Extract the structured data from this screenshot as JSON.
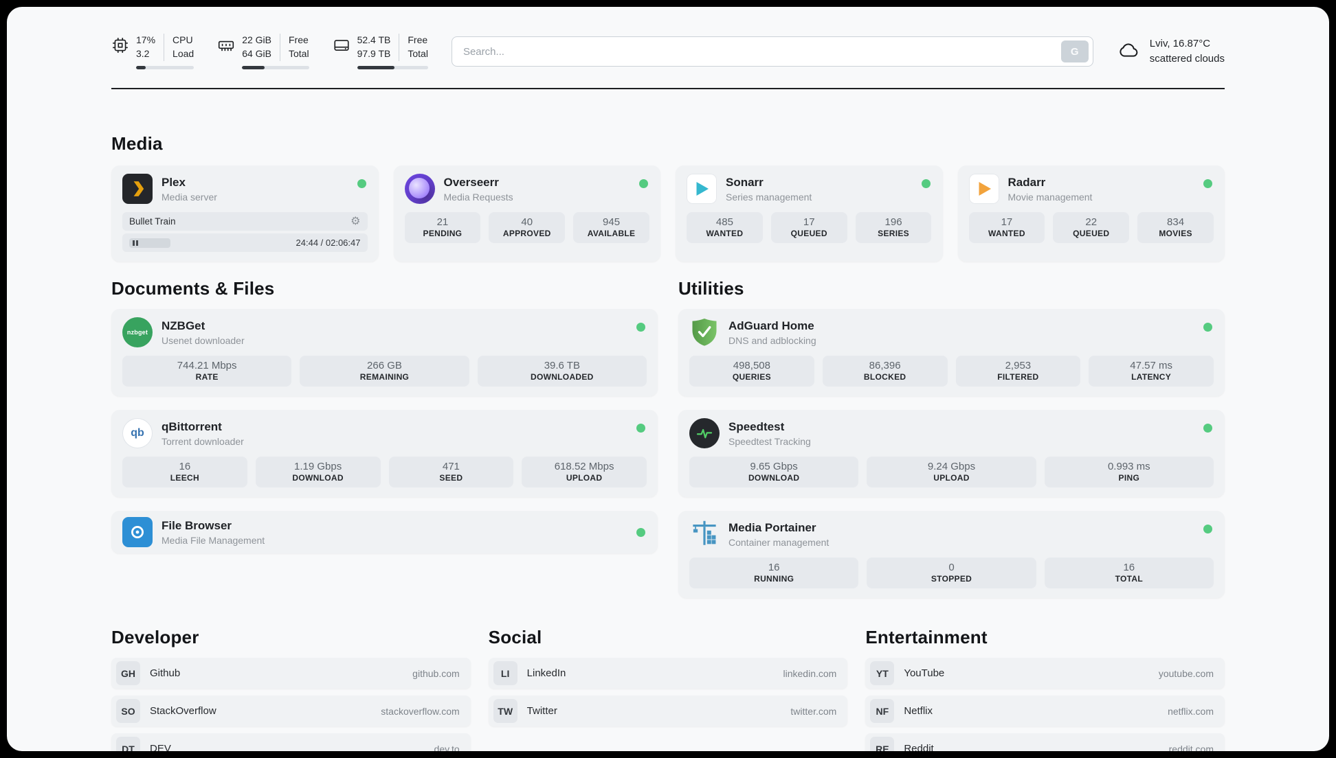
{
  "header": {
    "cpu": {
      "value_top": "17%",
      "value_bottom": "3.2",
      "label_top": "CPU",
      "label_bottom": "Load",
      "bar_percent": 17
    },
    "ram": {
      "value_top": "22 GiB",
      "value_bottom": "64 GiB",
      "label_top": "Free",
      "label_bottom": "Total",
      "bar_percent": 34
    },
    "disk": {
      "value_top": "52.4 TB",
      "value_bottom": "97.9 TB",
      "label_top": "Free",
      "label_bottom": "Total",
      "bar_percent": 53
    },
    "search": {
      "placeholder": "Search...",
      "engine_button": "G"
    },
    "weather": {
      "location_temp": "Lviv, 16.87°C",
      "condition": "scattered clouds"
    }
  },
  "media": {
    "title": "Media",
    "plex": {
      "name": "Plex",
      "subtitle": "Media server",
      "now_playing": "Bullet Train",
      "time": "24:44 / 02:06:47"
    },
    "overseerr": {
      "name": "Overseerr",
      "subtitle": "Media Requests",
      "stats": [
        {
          "value": "21",
          "label": "PENDING"
        },
        {
          "value": "40",
          "label": "APPROVED"
        },
        {
          "value": "945",
          "label": "AVAILABLE"
        }
      ]
    },
    "sonarr": {
      "name": "Sonarr",
      "subtitle": "Series management",
      "stats": [
        {
          "value": "485",
          "label": "WANTED"
        },
        {
          "value": "17",
          "label": "QUEUED"
        },
        {
          "value": "196",
          "label": "SERIES"
        }
      ]
    },
    "radarr": {
      "name": "Radarr",
      "subtitle": "Movie management",
      "stats": [
        {
          "value": "17",
          "label": "WANTED"
        },
        {
          "value": "22",
          "label": "QUEUED"
        },
        {
          "value": "834",
          "label": "MOVIES"
        }
      ]
    }
  },
  "documents": {
    "title": "Documents & Files",
    "nzbget": {
      "name": "NZBGet",
      "subtitle": "Usenet downloader",
      "icon_text": "nzbget",
      "stats": [
        {
          "value": "744.21 Mbps",
          "label": "RATE"
        },
        {
          "value": "266 GB",
          "label": "REMAINING"
        },
        {
          "value": "39.6 TB",
          "label": "DOWNLOADED"
        }
      ]
    },
    "qbittorrent": {
      "name": "qBittorrent",
      "subtitle": "Torrent downloader",
      "icon_text": "qb",
      "stats": [
        {
          "value": "16",
          "label": "LEECH"
        },
        {
          "value": "1.19 Gbps",
          "label": "DOWNLOAD"
        },
        {
          "value": "471",
          "label": "SEED"
        },
        {
          "value": "618.52 Mbps",
          "label": "UPLOAD"
        }
      ]
    },
    "filebrowser": {
      "name": "File Browser",
      "subtitle": "Media File Management"
    }
  },
  "utilities": {
    "title": "Utilities",
    "adguard": {
      "name": "AdGuard Home",
      "subtitle": "DNS and adblocking",
      "stats": [
        {
          "value": "498,508",
          "label": "QUERIES"
        },
        {
          "value": "86,396",
          "label": "BLOCKED"
        },
        {
          "value": "2,953",
          "label": "FILTERED"
        },
        {
          "value": "47.57 ms",
          "label": "LATENCY"
        }
      ]
    },
    "speedtest": {
      "name": "Speedtest",
      "subtitle": "Speedtest Tracking",
      "stats": [
        {
          "value": "9.65 Gbps",
          "label": "DOWNLOAD"
        },
        {
          "value": "9.24 Gbps",
          "label": "UPLOAD"
        },
        {
          "value": "0.993 ms",
          "label": "PING"
        }
      ]
    },
    "portainer": {
      "name": "Media Portainer",
      "subtitle": "Container management",
      "stats": [
        {
          "value": "16",
          "label": "RUNNING"
        },
        {
          "value": "0",
          "label": "STOPPED"
        },
        {
          "value": "16",
          "label": "TOTAL"
        }
      ]
    }
  },
  "bookmarks": {
    "developer": {
      "title": "Developer",
      "links": [
        {
          "badge": "GH",
          "name": "Github",
          "url": "github.com"
        },
        {
          "badge": "SO",
          "name": "StackOverflow",
          "url": "stackoverflow.com"
        },
        {
          "badge": "DT",
          "name": "DEV",
          "url": "dev.to"
        }
      ]
    },
    "social": {
      "title": "Social",
      "links": [
        {
          "badge": "LI",
          "name": "LinkedIn",
          "url": "linkedin.com"
        },
        {
          "badge": "TW",
          "name": "Twitter",
          "url": "twitter.com"
        }
      ]
    },
    "entertainment": {
      "title": "Entertainment",
      "links": [
        {
          "badge": "YT",
          "name": "YouTube",
          "url": "youtube.com"
        },
        {
          "badge": "NF",
          "name": "Netflix",
          "url": "netflix.com"
        },
        {
          "badge": "RE",
          "name": "Reddit",
          "url": "reddit.com"
        }
      ]
    }
  },
  "colors": {
    "status_online": "#55cb80",
    "accent_dark": "#1c1e21"
  }
}
